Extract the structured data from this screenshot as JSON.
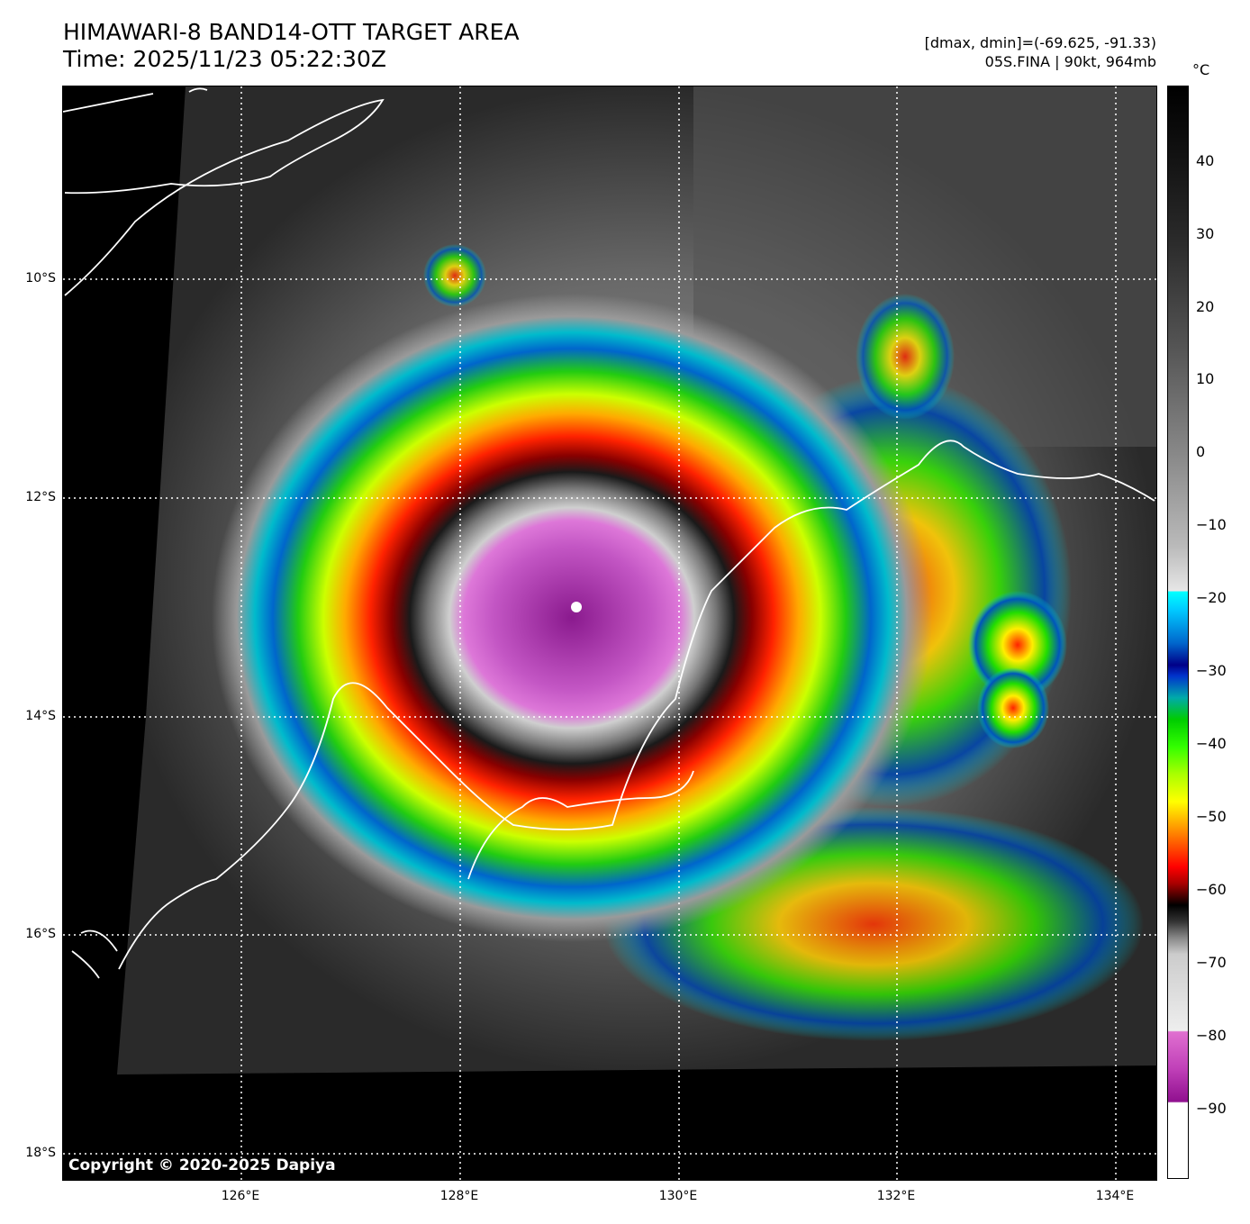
{
  "title": {
    "line1": "HIMAWARI-8 BAND14-OTT TARGET AREA",
    "line2": "Time: 2025/11/23 05:22:30Z"
  },
  "info": {
    "line1": "[dmax, dmin]=(-69.625, -91.33)",
    "line2": "05S.FINA | 90kt, 964mb"
  },
  "map": {
    "copyright": "Copyright © 2020-2025 Dapiya",
    "lat_ticks": [
      "10°S",
      "12°S",
      "14°S",
      "16°S",
      "18°S"
    ],
    "lon_ticks": [
      "126°E",
      "128°E",
      "130°E",
      "132°E",
      "134°E"
    ],
    "storm_name": "05S.FINA",
    "background_color": "#000000",
    "coastline_color": "#ffffff"
  },
  "colorbar": {
    "unit": "°C",
    "ticks": [
      "40",
      "30",
      "20",
      "10",
      "0",
      "−10",
      "−20",
      "−30",
      "−40",
      "−50",
      "−60",
      "−70",
      "−80",
      "−90"
    ],
    "range_c": [
      -100,
      50
    ]
  }
}
